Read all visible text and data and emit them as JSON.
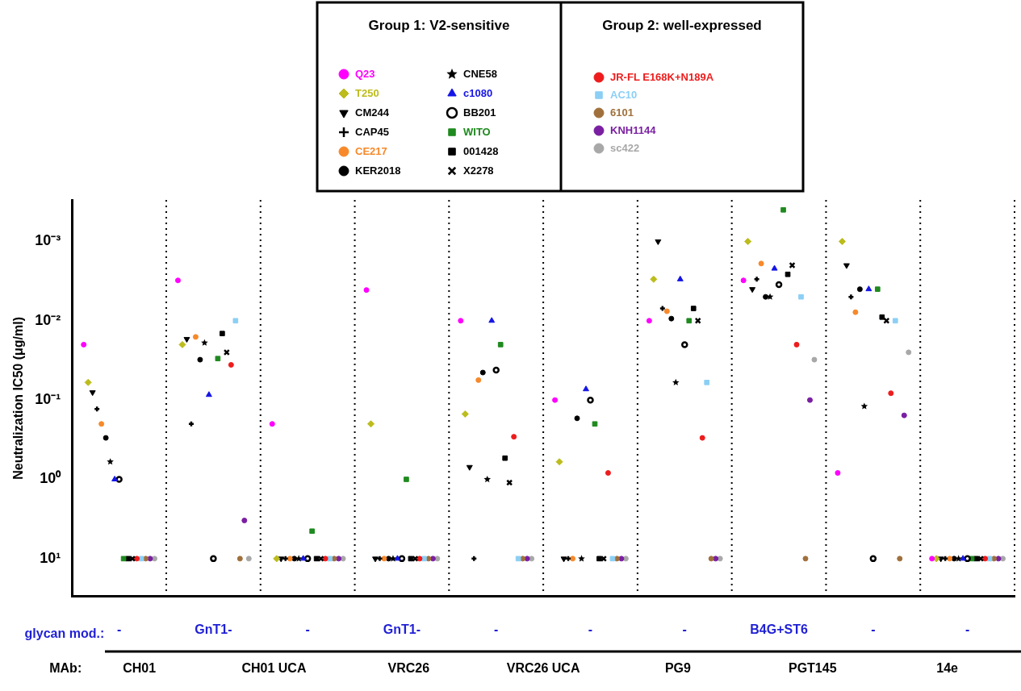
{
  "chart_data": {
    "type": "scatter",
    "ylabel": "Neutralization IC50 (μg/ml)",
    "xlabel": "glycan mod.:",
    "legend": "top",
    "legend_title": [
      "Group 1: V2-sensitive",
      "Group 2: well-expressed"
    ],
    "grid": "x",
    "log": "y",
    "categories": [
      "-",
      "GnT1-",
      "-",
      "GnT1-",
      "-",
      "-",
      "-",
      "B4G+ST6",
      "-",
      "-"
    ],
    "ylim": [
      30,
      0.0003
    ],
    "yticks": [
      {
        "value": 10,
        "label": "10¹"
      },
      {
        "value": 1,
        "label": "10⁰"
      },
      {
        "value": 0.1,
        "label": "10⁻¹"
      },
      {
        "value": 0.01,
        "label": "10⁻²"
      },
      {
        "value": 0.001,
        "label": "10⁻³"
      }
    ],
    "annotations": [
      "MAb:",
      "CH01",
      "CH01 UCA",
      "VRC26",
      "VRC26 UCA",
      "PG9",
      "PGT145",
      "14e"
    ],
    "series": [
      {
        "name": "Q23",
        "marker": "circle",
        "color": "#ff00ff",
        "values": [
          0.02,
          0.0031,
          0.2,
          0.0041,
          0.01,
          0.1,
          0.01,
          0.0031,
          0.83,
          10
        ]
      },
      {
        "name": "T250",
        "marker": "diamond",
        "color": "#bcbc1c",
        "values": [
          0.06,
          0.02,
          10,
          0.2,
          0.15,
          0.6,
          0.003,
          0.001,
          0.001,
          10
        ]
      },
      {
        "name": "CM244",
        "marker": "triangle-down",
        "color": "#000000",
        "values": [
          0.08,
          0.017,
          10,
          10,
          0.7,
          10,
          0.001,
          0.004,
          0.002,
          10
        ]
      },
      {
        "name": "CAP45",
        "marker": "plus",
        "color": "#000000",
        "values": [
          0.13,
          0.2,
          10,
          10,
          10,
          10,
          0.007,
          0.003,
          0.005,
          10
        ]
      },
      {
        "name": "CE217",
        "marker": "circle",
        "color": "#f7892a",
        "values": [
          0.2,
          0.016,
          10,
          10,
          0.056,
          10,
          0.0076,
          0.0019,
          0.0078,
          10
        ]
      },
      {
        "name": "KER2018",
        "marker": "circle",
        "color": "#000000",
        "values": [
          0.3,
          0.031,
          10,
          10,
          0.045,
          0.17,
          0.0094,
          0.005,
          0.004,
          10
        ]
      },
      {
        "name": "CNE58",
        "marker": "star",
        "color": "#000000",
        "values": [
          0.6,
          0.019,
          10,
          10,
          1.0,
          10,
          0.06,
          0.005,
          0.12,
          10
        ]
      },
      {
        "name": "c1080",
        "marker": "triangle",
        "color": "#1414e6",
        "values": [
          1.0,
          0.086,
          10,
          10,
          0.01,
          0.073,
          0.003,
          0.0022,
          0.004,
          10
        ]
      },
      {
        "name": "BB201",
        "marker": "circle-open",
        "color": "#000000",
        "values": [
          1.0,
          10,
          10,
          10,
          0.042,
          0.1,
          0.02,
          0.0035,
          10,
          10
        ]
      },
      {
        "name": "WITO",
        "marker": "square",
        "color": "#1f8a1f",
        "values": [
          10,
          0.03,
          4.5,
          1.0,
          0.02,
          0.2,
          0.01,
          0.0004,
          0.004,
          10
        ]
      },
      {
        "name": "001428",
        "marker": "square",
        "color": "#000000",
        "values": [
          10,
          0.0145,
          10,
          10,
          0.54,
          10,
          0.007,
          0.0026,
          0.009,
          10
        ]
      },
      {
        "name": "X2278",
        "marker": "cross",
        "color": "#000000",
        "values": [
          10,
          0.025,
          10,
          10,
          1.1,
          10,
          0.01,
          0.002,
          0.01,
          10
        ]
      },
      {
        "name": "JR-FL E168K+N189A",
        "marker": "circle",
        "color": "#ee1c1c",
        "values": [
          10,
          0.036,
          10,
          10,
          0.29,
          0.83,
          0.3,
          0.02,
          0.082,
          10
        ]
      },
      {
        "name": "AC10",
        "marker": "square",
        "color": "#8ccff5",
        "values": [
          10,
          0.01,
          10,
          10,
          10,
          10,
          0.06,
          0.005,
          0.01,
          10
        ]
      },
      {
        "name": "6101",
        "marker": "circle",
        "color": "#a0703c",
        "values": [
          10,
          10,
          10,
          10,
          10,
          10,
          10,
          10,
          10,
          10
        ]
      },
      {
        "name": "KNH1144",
        "marker": "circle",
        "color": "#7a1fa2",
        "values": [
          10,
          3.3,
          10,
          10,
          10,
          10,
          10,
          0.1,
          0.156,
          10
        ]
      },
      {
        "name": "sc422",
        "marker": "circle",
        "color": "#a8a8a8",
        "values": [
          10,
          10,
          10,
          10,
          10,
          10,
          10,
          0.031,
          0.025,
          10
        ]
      }
    ]
  }
}
